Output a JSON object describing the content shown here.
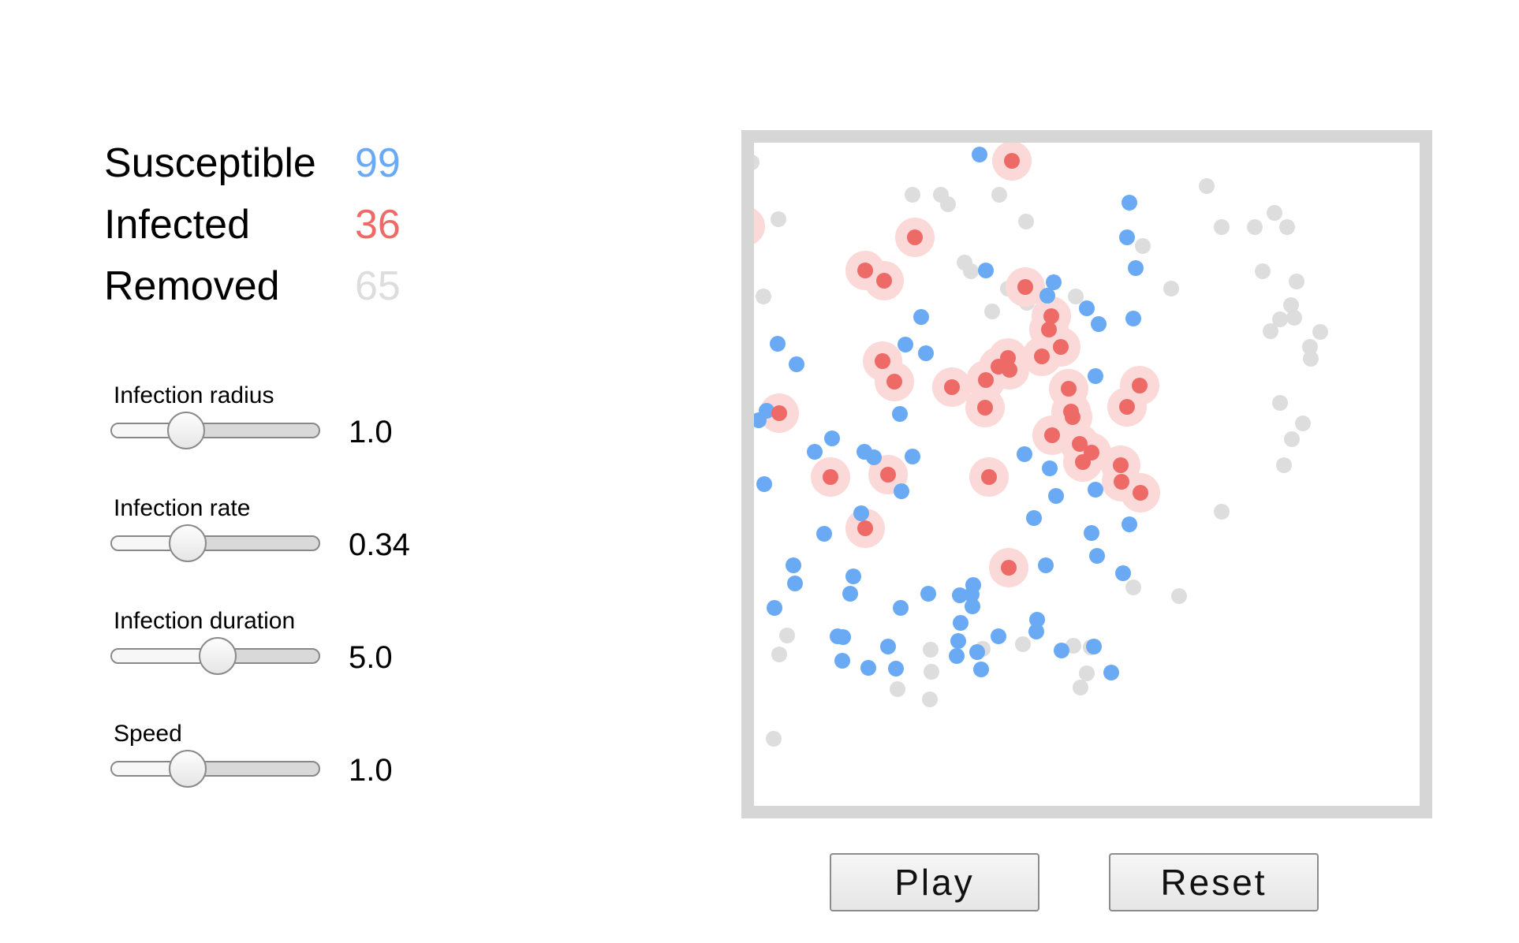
{
  "stats": {
    "susceptible": {
      "label": "Susceptible",
      "value": "99",
      "color": "#6aaaf5"
    },
    "infected": {
      "label": "Infected",
      "value": "36",
      "color": "#ee6a66"
    },
    "removed": {
      "label": "Removed",
      "value": "65",
      "color": "#dddddd"
    }
  },
  "controls": {
    "radius": {
      "label": "Infection radius",
      "value": "1.0",
      "level": 0.36
    },
    "rate": {
      "label": "Infection rate",
      "value": "0.34",
      "level": 0.37
    },
    "duration": {
      "label": "Infection duration",
      "value": "5.0",
      "level": 0.51
    },
    "speed": {
      "label": "Speed",
      "value": "1.0",
      "level": 0.37
    }
  },
  "buttons": {
    "play": "Play",
    "reset": "Reset"
  },
  "colors": {
    "susceptible": "#6aaaf5",
    "infected": "#ee6a66",
    "infected_halo": "#fbd9d8",
    "removed": "#dddddd",
    "frame": "#d6d6d6"
  }
}
